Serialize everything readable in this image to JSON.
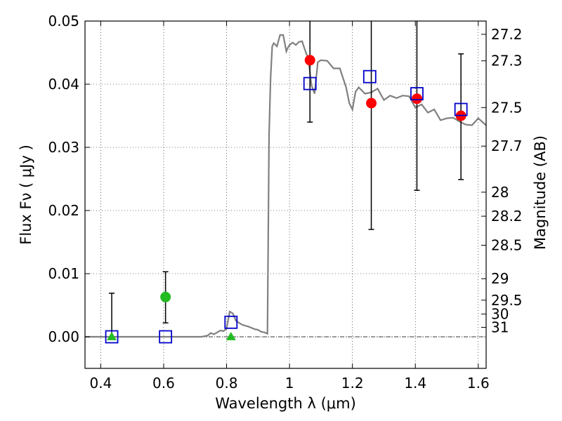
{
  "chart_data": {
    "type": "line",
    "xlabel": "Wavelength  λ (μm)",
    "ylabel": "Flux  Fν  ( μJy )",
    "y2label": "Magnitude (AB)",
    "xlim": [
      0.35,
      1.625
    ],
    "ylim": [
      -0.005,
      0.05
    ],
    "grid": true,
    "x_ticks": [
      0.4,
      0.6,
      0.8,
      1.0,
      1.2,
      1.4,
      1.6
    ],
    "x_tick_labels": [
      "0.4",
      "0.6",
      "0.8",
      "1",
      "1.2",
      "1.4",
      "1.6"
    ],
    "y_ticks": [
      0.0,
      0.01,
      0.02,
      0.03,
      0.04,
      0.05
    ],
    "y_tick_labels": [
      "0.00",
      "0.01",
      "0.02",
      "0.03",
      "0.04",
      "0.05"
    ],
    "y2_ticks": [
      {
        "flux": 0.0479,
        "label": "27.2"
      },
      {
        "flux": 0.0437,
        "label": "27.3"
      },
      {
        "flux": 0.0363,
        "label": "27.5"
      },
      {
        "flux": 0.0302,
        "label": "27.7"
      },
      {
        "flux": 0.0229,
        "label": "28"
      },
      {
        "flux": 0.0191,
        "label": "28.2"
      },
      {
        "flux": 0.0145,
        "label": "28.5"
      },
      {
        "flux": 0.0092,
        "label": "29"
      },
      {
        "flux": 0.0058,
        "label": "29.5"
      },
      {
        "flux": 0.0036,
        "label": "30"
      },
      {
        "flux": 0.0015,
        "label": "31"
      }
    ],
    "series": [
      {
        "kind": "line",
        "color": "#808080",
        "x": [
          0.35,
          0.6,
          0.72,
          0.74,
          0.745,
          0.75,
          0.76,
          0.78,
          0.79,
          0.8,
          0.81,
          0.82,
          0.83,
          0.85,
          0.87,
          0.89,
          0.9,
          0.91,
          0.92,
          0.93,
          0.935,
          0.94,
          0.945,
          0.95,
          0.96,
          0.97,
          0.98,
          0.99,
          0.995,
          1.0,
          1.01,
          1.02,
          1.03,
          1.04,
          1.05,
          1.06,
          1.07,
          1.08,
          1.09,
          1.1,
          1.12,
          1.14,
          1.16,
          1.17,
          1.18,
          1.19,
          1.2,
          1.21,
          1.22,
          1.24,
          1.26,
          1.28,
          1.3,
          1.32,
          1.34,
          1.36,
          1.38,
          1.4,
          1.42,
          1.44,
          1.46,
          1.48,
          1.5,
          1.52,
          1.54,
          1.56,
          1.58,
          1.6,
          1.625
        ],
        "y": [
          0.0,
          0.0,
          0.0,
          0.0002,
          0.0004,
          0.0006,
          0.0004,
          0.001,
          0.0009,
          0.0013,
          0.004,
          0.0037,
          0.0025,
          0.0019,
          0.0016,
          0.0012,
          0.0011,
          0.0008,
          0.0007,
          0.0005,
          0.032,
          0.041,
          0.046,
          0.0465,
          0.046,
          0.0478,
          0.0478,
          0.0452,
          0.0458,
          0.0462,
          0.0466,
          0.0462,
          0.0467,
          0.0468,
          0.0453,
          0.044,
          0.0398,
          0.0385,
          0.0435,
          0.0438,
          0.0437,
          0.0425,
          0.0425,
          0.041,
          0.0395,
          0.037,
          0.036,
          0.0388,
          0.0395,
          0.0385,
          0.0387,
          0.0393,
          0.0375,
          0.0382,
          0.0378,
          0.0382,
          0.0381,
          0.0363,
          0.0368,
          0.0355,
          0.036,
          0.0343,
          0.0346,
          0.0347,
          0.0341,
          0.0336,
          0.0335,
          0.0346,
          0.0335
        ]
      },
      {
        "kind": "scatter",
        "marker": "circle",
        "color": "#ff0000",
        "x": [
          1.065,
          1.26,
          1.405,
          1.545
        ],
        "y": [
          0.0438,
          0.037,
          0.0377,
          0.035
        ],
        "err": [
          null,
          0.02,
          0.0145,
          0.01
        ]
      },
      {
        "kind": "scatter",
        "marker": "circle",
        "color": "#22bb22",
        "x": [
          0.606
        ],
        "y": [
          0.0063
        ],
        "err": [
          0.0041
        ]
      },
      {
        "kind": "scatter",
        "marker": "triangle",
        "color": "#22bb22",
        "x": [
          0.435,
          0.814
        ],
        "y": [
          0.0,
          0.0
        ],
        "err": [
          0.0069,
          null
        ]
      },
      {
        "kind": "scatter",
        "marker": "square",
        "color": "#0000cc",
        "x": [
          0.435,
          0.606,
          0.814,
          1.065,
          1.255,
          1.405,
          1.545
        ],
        "y": [
          0.0,
          0.0,
          0.0023,
          0.0401,
          0.0412,
          0.0385,
          0.036
        ]
      }
    ],
    "error_bars": [
      {
        "x": 0.435,
        "lo": 0.0,
        "hi": 0.0069
      },
      {
        "x": 0.606,
        "lo": 0.0022,
        "hi": 0.0103
      },
      {
        "x": 1.065,
        "lo": 0.034,
        "hi": 0.05
      },
      {
        "x": 1.26,
        "lo": 0.017,
        "hi": 0.05
      },
      {
        "x": 1.405,
        "lo": 0.0232,
        "hi": 0.05
      },
      {
        "x": 1.545,
        "lo": 0.0249,
        "hi": 0.0448
      }
    ]
  }
}
